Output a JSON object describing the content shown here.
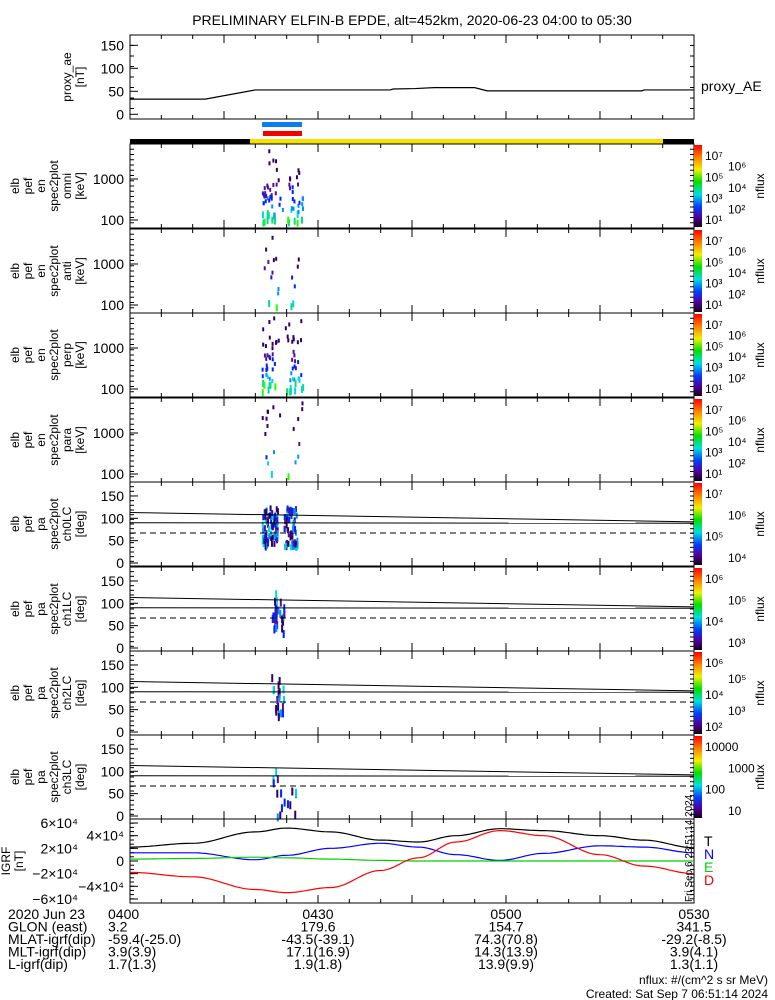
{
  "title": "PRELIMINARY ELFIN-B EPDE, alt=452km, 2020-06-23 04:00 to 05:30",
  "colors": {
    "blue_bar": "#0a7ef0",
    "red_bar": "#f40000",
    "sunlit": "#f5e000",
    "shadow": "#000000",
    "T": "#000000",
    "N": "#0000ff",
    "E": "#00d000",
    "D": "#ff0000"
  },
  "chart_data": [
    {
      "type": "line",
      "name": "proxy_ae",
      "ylabel": [
        "proxy_ae",
        "[nT]"
      ],
      "yticks": [
        "150",
        "100",
        "50",
        "0"
      ],
      "ylim": [
        -10,
        172
      ],
      "legend": "proxy_AE",
      "x_minutes_since_0400": [
        0,
        12,
        20,
        41.5,
        42,
        45.5,
        48.5,
        55,
        57,
        81.7,
        82,
        90
      ],
      "values": [
        33,
        33,
        53,
        53,
        55,
        56,
        58,
        58,
        51,
        51,
        53,
        53
      ]
    },
    {
      "type": "heatmap",
      "name": "energy_spectrograms",
      "panels": [
        {
          "ylabel": [
            "elb",
            "pef",
            "en",
            "spec2plot",
            "omni",
            "[keV]"
          ],
          "yticks": [
            "1000",
            "100"
          ],
          "cbar_label": "nflux",
          "cbar_ticks": [
            "10⁷",
            "10⁶",
            "10⁵",
            "10⁴",
            "10³",
            "10²",
            "10¹"
          ]
        },
        {
          "ylabel": [
            "elb",
            "pef",
            "en",
            "spec2plot",
            "anti",
            "[keV]"
          ],
          "yticks": [
            "1000",
            "100"
          ],
          "cbar_label": "nflux",
          "cbar_ticks": [
            "10⁷",
            "10⁶",
            "10⁵",
            "10⁴",
            "10³",
            "10²",
            "10¹"
          ]
        },
        {
          "ylabel": [
            "elb",
            "pef",
            "en",
            "spec2plot",
            "perp",
            "[keV]"
          ],
          "yticks": [
            "1000",
            "100"
          ],
          "cbar_label": "nflux",
          "cbar_ticks": [
            "10⁷",
            "10⁶",
            "10⁵",
            "10⁴",
            "10³",
            "10²",
            "10¹"
          ]
        },
        {
          "ylabel": [
            "elb",
            "pef",
            "en",
            "spec2plot",
            "para",
            "[keV]"
          ],
          "yticks": [
            "1000",
            "100"
          ],
          "cbar_label": "nflux",
          "cbar_ticks": [
            "10⁷",
            "10⁶",
            "10⁵",
            "10⁴",
            "10³",
            "10²",
            "10¹"
          ]
        }
      ],
      "activity_window_minutes": [
        21,
        27.5
      ]
    },
    {
      "type": "heatmap",
      "name": "pitch_angle_spectrograms",
      "panels": [
        {
          "ylabel": [
            "elb",
            "pef",
            "pa",
            "spec2plot",
            "ch0LC",
            "[deg]"
          ],
          "yticks": [
            "150",
            "100",
            "50",
            "0"
          ],
          "cbar_label": "nflux",
          "cbar_ticks": [
            "10⁷",
            "10⁶",
            "10⁵",
            "10⁴"
          ]
        },
        {
          "ylabel": [
            "elb",
            "pef",
            "pa",
            "spec2plot",
            "ch1LC",
            "[deg]"
          ],
          "yticks": [
            "150",
            "100",
            "50",
            "0"
          ],
          "cbar_label": "nflux",
          "cbar_ticks": [
            "10⁶",
            "10⁵",
            "10⁴",
            "10³"
          ]
        },
        {
          "ylabel": [
            "elb",
            "pef",
            "pa",
            "spec2plot",
            "ch2LC",
            "[deg]"
          ],
          "yticks": [
            "150",
            "100",
            "50",
            "0"
          ],
          "cbar_label": "nflux",
          "cbar_ticks": [
            "10⁶",
            "10⁵",
            "10⁴",
            "10³",
            "10²"
          ]
        },
        {
          "ylabel": [
            "elb",
            "pef",
            "pa",
            "spec2plot",
            "ch3LC",
            "[deg]"
          ],
          "yticks": [
            "150",
            "100",
            "50",
            "0"
          ],
          "cbar_label": "nflux",
          "cbar_ticks": [
            "10000",
            "1000",
            "100",
            "10"
          ]
        }
      ],
      "loss_cone_lines_deg": {
        "upper": [
          113,
          92
        ],
        "lower": [
          90,
          89
        ],
        "dashed": 67
      }
    },
    {
      "type": "line",
      "name": "igrf",
      "ylabel": [
        "IGRF",
        "[nT]"
      ],
      "yticks": [
        "6×10⁴",
        "4×10⁴",
        "2×10⁴",
        "0",
        "−2×10⁴",
        "−4×10⁴",
        "−6×10⁴"
      ],
      "ylim": [
        -65000,
        65000
      ],
      "x_minutes_since_0400": [
        0,
        10,
        20,
        25,
        32,
        40,
        46,
        52,
        59,
        66,
        75,
        82,
        90
      ],
      "series": [
        {
          "name": "T",
          "values": [
            22000,
            28000,
            46000,
            52000,
            46000,
            33000,
            30000,
            40000,
            51000,
            48000,
            40000,
            33000,
            21000
          ]
        },
        {
          "name": "N",
          "values": [
            13000,
            13000,
            2000,
            9000,
            20000,
            28000,
            22000,
            10000,
            1000,
            12000,
            24000,
            22000,
            13000
          ]
        },
        {
          "name": "E",
          "values": [
            3000,
            4000,
            6000,
            5000,
            3000,
            1000,
            0,
            0,
            0,
            0,
            0,
            0,
            0
          ]
        },
        {
          "name": "D",
          "values": [
            -18000,
            -25000,
            -45000,
            -50000,
            -42000,
            -15000,
            5000,
            30000,
            48000,
            40000,
            10000,
            -8000,
            -20000
          ]
        }
      ],
      "legend": [
        "T",
        "N",
        "E",
        "D"
      ]
    }
  ],
  "side_stamp": "Fri Sep  6 23:51:14 2024",
  "bottom": {
    "rows": [
      {
        "label": "2020 Jun 23",
        "values": [
          "0400",
          "0430",
          "0500",
          "0530"
        ]
      },
      {
        "label": "GLON (east)",
        "values": [
          "3.2",
          "179.6",
          "154.7",
          "341.5"
        ]
      },
      {
        "label": "MLAT-igrf(dip)",
        "values": [
          "-59.4(-25.0)",
          "-43.5(-39.1)",
          "74.3(70.8)",
          "-29.2(-8.5)"
        ]
      },
      {
        "label": "MLT-igrf(dip)",
        "values": [
          "3.9(3.9)",
          "17.1(16.9)",
          "14.3(13.9)",
          "3.9(4.1)"
        ]
      },
      {
        "label": "L-igrf(dip)",
        "values": [
          "1.7(1.3)",
          "1.9(1.8)",
          "13.9(9.9)",
          "1.3(1.1)"
        ]
      }
    ]
  },
  "footer": {
    "units": "nflux: #/(cm^2 s sr MeV)",
    "created": "Created: Sat Sep  7 06:51:14 2024"
  }
}
